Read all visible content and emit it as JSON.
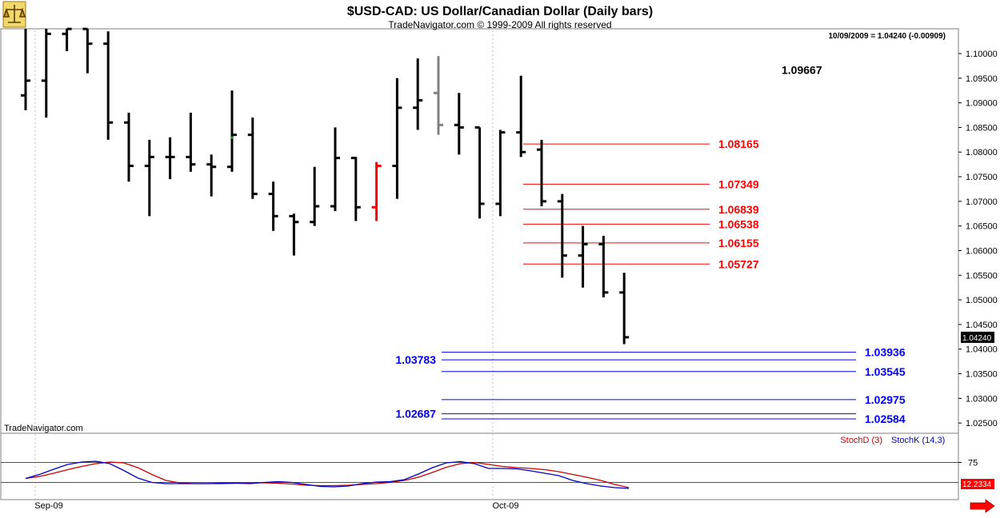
{
  "header": {
    "title": "$USD-CAD:  US Dollar/Canadian Dollar  (Daily bars)",
    "copyright": "TradeNavigator.com © 1999-2009 All rights reserved",
    "last_quote": "10/09/2009 = 1.04240 (-0.00909)",
    "watermark": "TradeNavigator.com"
  },
  "colors": {
    "bars": "#000000",
    "highlight_bar": "#ff0000",
    "gray_bar": "#808080",
    "resistance": "#ff0000",
    "support": "#0000ff",
    "stoch_d": "#cc0000",
    "stoch_k": "#0000cc",
    "frame": "#808080"
  },
  "chart_data": [
    {
      "type": "bar",
      "subtype": "ohlc",
      "name": "price",
      "x_labels": [
        "Sep-09",
        "Oct-09"
      ],
      "ylim": [
        1.021,
        1.105
      ],
      "y_ticks": [
        "1.10000",
        "1.09500",
        "1.09000",
        "1.08500",
        "1.08000",
        "1.07500",
        "1.07000",
        "1.06500",
        "1.06000",
        "1.05500",
        "1.05000",
        "1.04500",
        "1.04000",
        "1.03500",
        "1.03000",
        "1.02500"
      ],
      "last_price_label": "1.04240",
      "bars": [
        {
          "o": 1.0915,
          "h": 1.106,
          "l": 1.0885,
          "c": 1.0945
        },
        {
          "o": 1.0945,
          "h": 1.107,
          "l": 1.087,
          "c": 1.104
        },
        {
          "o": 1.104,
          "h": 1.106,
          "l": 1.1005,
          "c": 1.105
        },
        {
          "o": 1.105,
          "h": 1.105,
          "l": 1.096,
          "c": 1.102
        },
        {
          "o": 1.102,
          "h": 1.1045,
          "l": 1.0825,
          "c": 1.086
        },
        {
          "o": 1.086,
          "h": 1.088,
          "l": 1.074,
          "c": 1.0772
        },
        {
          "o": 1.0772,
          "h": 1.0825,
          "l": 1.067,
          "c": 1.079
        },
        {
          "o": 1.079,
          "h": 1.083,
          "l": 1.0745,
          "c": 1.079
        },
        {
          "o": 1.079,
          "h": 1.088,
          "l": 1.076,
          "c": 1.0775
        },
        {
          "o": 1.0775,
          "h": 1.0795,
          "l": 1.071,
          "c": 1.077
        },
        {
          "o": 1.077,
          "h": 1.0925,
          "l": 1.076,
          "c": 1.0835
        },
        {
          "o": 1.0835,
          "h": 1.087,
          "l": 1.0705,
          "c": 1.0715
        },
        {
          "o": 1.0715,
          "h": 1.074,
          "l": 1.064,
          "c": 1.067
        },
        {
          "o": 1.067,
          "h": 1.0675,
          "l": 1.059,
          "c": 1.0658
        },
        {
          "o": 1.0658,
          "h": 1.077,
          "l": 1.065,
          "c": 1.069
        },
        {
          "o": 1.069,
          "h": 1.085,
          "l": 1.068,
          "c": 1.0788
        },
        {
          "o": 1.0788,
          "h": 1.079,
          "l": 1.066,
          "c": 1.0688
        },
        {
          "o": 1.0688,
          "h": 1.078,
          "l": 1.066,
          "c": 1.0772
        },
        {
          "o": 1.0772,
          "h": 1.095,
          "l": 1.0705,
          "c": 1.089
        },
        {
          "o": 1.089,
          "h": 1.099,
          "l": 1.0845,
          "c": 1.0905
        },
        {
          "o": 1.092,
          "h": 1.0995,
          "l": 1.0835,
          "c": 1.0855
        },
        {
          "o": 1.0855,
          "h": 1.092,
          "l": 1.0795,
          "c": 1.085
        },
        {
          "o": 1.085,
          "h": 1.085,
          "l": 1.0665,
          "c": 1.0695
        },
        {
          "o": 1.0695,
          "h": 1.0845,
          "l": 1.067,
          "c": 1.084
        },
        {
          "o": 1.084,
          "h": 1.0955,
          "l": 1.079,
          "c": 1.08
        },
        {
          "o": 1.0805,
          "h": 1.0825,
          "l": 1.069,
          "c": 1.07
        },
        {
          "o": 1.07,
          "h": 1.0715,
          "l": 1.0545,
          "c": 1.059
        },
        {
          "o": 1.059,
          "h": 1.065,
          "l": 1.0525,
          "c": 1.0613
        },
        {
          "o": 1.0613,
          "h": 1.063,
          "l": 1.0505,
          "c": 1.0515
        },
        {
          "o": 1.0515,
          "h": 1.0555,
          "l": 1.041,
          "c": 1.0424
        }
      ],
      "special_bars": {
        "red": 17,
        "gray": 20,
        "green_dot": 10
      },
      "annotations": [
        {
          "text": "1.09667",
          "y": 1.09667,
          "color": "black"
        }
      ],
      "resistance_levels": [
        {
          "value": 1.08165,
          "label": "1.08165",
          "from_bar": 24
        },
        {
          "value": 1.07349,
          "label": "1.07349",
          "from_bar": 24
        },
        {
          "value": 1.06839,
          "label": "1.06839",
          "from_bar": 24
        },
        {
          "value": 1.06538,
          "label": "1.06538",
          "from_bar": 24
        },
        {
          "value": 1.06155,
          "label": "1.06155",
          "from_bar": 24
        },
        {
          "value": 1.05727,
          "label": "1.05727",
          "from_bar": 24
        }
      ],
      "support_levels": [
        {
          "value": 1.03936,
          "label": "1.03936",
          "side": "right"
        },
        {
          "value": 1.03783,
          "label": "1.03783",
          "side": "left"
        },
        {
          "value": 1.03545,
          "label": "1.03545",
          "side": "right"
        },
        {
          "value": 1.02975,
          "label": "1.02975",
          "side": "right"
        },
        {
          "value": 1.02687,
          "label": "1.02687",
          "side": "left"
        },
        {
          "value": 1.02584,
          "label": "1.02584",
          "side": "right"
        }
      ]
    },
    {
      "type": "line",
      "name": "stochastic",
      "legend": [
        "StochD (3)",
        "StochK (14,3)"
      ],
      "ylim": [
        0,
        100
      ],
      "levels": [
        75,
        25
      ],
      "level_label": "75",
      "last_value_label": "12.2334",
      "series": [
        {
          "name": "StochD (3)",
          "values": [
            35,
            40,
            48,
            57,
            65,
            72,
            76,
            74,
            62,
            45,
            30,
            24,
            22,
            22,
            22,
            23,
            24,
            24,
            23,
            21,
            18,
            17,
            17,
            18,
            20,
            22,
            25,
            30,
            38,
            50,
            63,
            72,
            75,
            70,
            65,
            62,
            60,
            57,
            52,
            45,
            38,
            30,
            20,
            12
          ]
        },
        {
          "name": "StochK (14,3)",
          "values": [
            35,
            45,
            58,
            70,
            76,
            78,
            72,
            55,
            36,
            25,
            22,
            22,
            22,
            22,
            23,
            23,
            22,
            25,
            27,
            25,
            20,
            15,
            14,
            16,
            22,
            26,
            27,
            32,
            46,
            62,
            74,
            77,
            72,
            60,
            60,
            59,
            54,
            48,
            42,
            30,
            22,
            16,
            12,
            10
          ]
        }
      ]
    }
  ]
}
